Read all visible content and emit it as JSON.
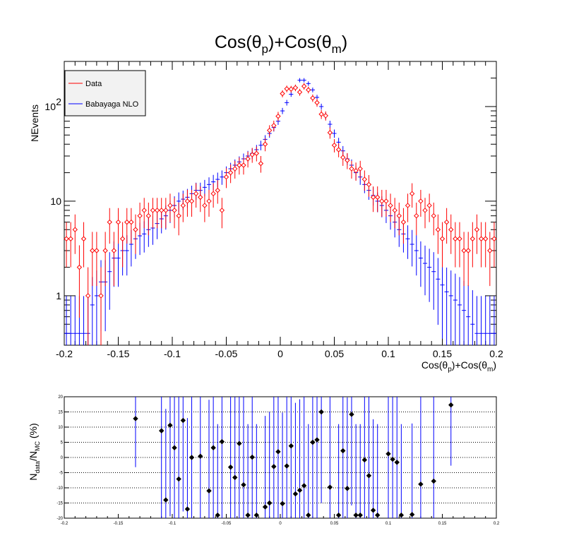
{
  "chart_data": [
    {
      "type": "scatter",
      "title": "Cos(θp)+Cos(θm)",
      "title_parts": [
        "Cos(θ",
        "p",
        ")+Cos(θ",
        "m",
        ")"
      ],
      "xlabel": "Cos(θp)+Cos(θm)",
      "xlabel_parts": [
        "Cos(θ",
        "p",
        ")+Cos(θ",
        "m",
        ")"
      ],
      "ylabel": "NEvents",
      "xlim": [
        -0.2,
        0.2
      ],
      "ylim": [
        0.3,
        300
      ],
      "y_log": true,
      "x_ticks": [
        "-0.2",
        "-0.15",
        "-0.1",
        "-0.05",
        "0",
        "0.05",
        "0.1",
        "0.15",
        "0.2"
      ],
      "y_ticks": [
        {
          "value": 1,
          "label": "1"
        },
        {
          "value": 10,
          "label": "10"
        },
        {
          "value": 100,
          "label": "10",
          "sup": "2"
        }
      ],
      "legend_position": "top-left",
      "legend": [
        {
          "label": "Data",
          "color": "#ff0000"
        },
        {
          "label": "Babayaga NLO",
          "color": "#0000ff"
        }
      ],
      "x": [
        -0.198,
        -0.194,
        -0.19,
        -0.186,
        -0.182,
        -0.178,
        -0.174,
        -0.17,
        -0.166,
        -0.162,
        -0.158,
        -0.154,
        -0.15,
        -0.146,
        -0.142,
        -0.138,
        -0.134,
        -0.13,
        -0.126,
        -0.122,
        -0.118,
        -0.114,
        -0.11,
        -0.106,
        -0.102,
        -0.098,
        -0.094,
        -0.09,
        -0.086,
        -0.082,
        -0.078,
        -0.074,
        -0.07,
        -0.066,
        -0.062,
        -0.058,
        -0.054,
        -0.05,
        -0.046,
        -0.042,
        -0.038,
        -0.034,
        -0.03,
        -0.026,
        -0.022,
        -0.018,
        -0.014,
        -0.01,
        -0.006,
        -0.002,
        0.002,
        0.006,
        0.01,
        0.014,
        0.018,
        0.022,
        0.026,
        0.03,
        0.034,
        0.038,
        0.042,
        0.046,
        0.05,
        0.054,
        0.058,
        0.062,
        0.066,
        0.07,
        0.074,
        0.078,
        0.082,
        0.086,
        0.09,
        0.094,
        0.098,
        0.102,
        0.106,
        0.11,
        0.114,
        0.118,
        0.122,
        0.126,
        0.13,
        0.134,
        0.138,
        0.142,
        0.146,
        0.15,
        0.154,
        0.158,
        0.162,
        0.166,
        0.17,
        0.174,
        0.178,
        0.182,
        0.186,
        0.19,
        0.194,
        0.198
      ],
      "series": [
        {
          "name": "Data",
          "color": "#ff0000",
          "marker": "open-diamond",
          "values": [
            4,
            4,
            5,
            2,
            4,
            1,
            3,
            3,
            1,
            3,
            6,
            3,
            6,
            4,
            6,
            6,
            5,
            7,
            8,
            7,
            8,
            8,
            8,
            8,
            9,
            8,
            7,
            9,
            10,
            10,
            12,
            11,
            9,
            10,
            12,
            13,
            8,
            18,
            20,
            22,
            24,
            24,
            28,
            31,
            32,
            25,
            40,
            56,
            63,
            79,
            137,
            154,
            153,
            158,
            142,
            164,
            150,
            123,
            110,
            83,
            80,
            53,
            39,
            35,
            29,
            27,
            22,
            21,
            22,
            17,
            15,
            11,
            11,
            10,
            10,
            9,
            8,
            7,
            6,
            9,
            12,
            7,
            10,
            8,
            9,
            7,
            5,
            4,
            6,
            5,
            4,
            4,
            3,
            3,
            4,
            5,
            4,
            4,
            3,
            4
          ]
        },
        {
          "name": "Babayaga NLO",
          "color": "#0000ff",
          "marker": "cross",
          "values": [
            0.4,
            0.4,
            0.4,
            0.4,
            0.4,
            0.4,
            0.8,
            1,
            1.4,
            1.4,
            1.8,
            2.5,
            2.5,
            3,
            3,
            3.5,
            4,
            4.3,
            4.5,
            5,
            5.2,
            5.8,
            6.5,
            7,
            8,
            9,
            10,
            10.5,
            11,
            12,
            13,
            13,
            14,
            15,
            16,
            17,
            18,
            20,
            22,
            24,
            26,
            28,
            30,
            32,
            35,
            39,
            45,
            52,
            60,
            70,
            90,
            110,
            135,
            160,
            190,
            190,
            175,
            150,
            125,
            100,
            80,
            65,
            52,
            42,
            34,
            28,
            24,
            20,
            18,
            15,
            13,
            11.5,
            10,
            9,
            8,
            7,
            6,
            5,
            4.5,
            4,
            3.5,
            3,
            2.5,
            2.2,
            2,
            1.8,
            1.5,
            1.3,
            1.1,
            1,
            0.9,
            0.8,
            0.7,
            0.6,
            0.5,
            0.4,
            0.4,
            0.4,
            0.4,
            0.4
          ]
        }
      ]
    },
    {
      "type": "scatter",
      "ylabel": "Ndata/NMC (%)",
      "ylabel_parts": [
        "N",
        "data",
        "/N",
        "MC",
        " (%)"
      ],
      "xlim": [
        -0.2,
        0.2
      ],
      "ylim": [
        -20,
        20
      ],
      "grid": "horizontal dotted",
      "x_ticks": [
        "-0.2",
        "-0.15",
        "-0.1",
        "-0.05",
        "0",
        "0.05",
        "0.1",
        "0.15",
        "0.2"
      ],
      "y_ticks": [
        "-20",
        "-15",
        "-10",
        "-5",
        "0",
        "5",
        "10",
        "15",
        "20"
      ],
      "series": [
        {
          "name": "",
          "color": "#000000",
          "marker": "filled-diamond",
          "error_color": "#0000ff",
          "x": [
            -0.134,
            -0.11,
            -0.106,
            -0.102,
            -0.098,
            -0.094,
            -0.09,
            -0.086,
            -0.082,
            -0.074,
            -0.066,
            -0.062,
            -0.058,
            -0.054,
            -0.046,
            -0.042,
            -0.038,
            -0.034,
            -0.03,
            -0.026,
            -0.022,
            -0.014,
            -0.01,
            -0.006,
            -0.002,
            0.002,
            0.006,
            0.01,
            0.014,
            0.018,
            0.022,
            0.026,
            0.03,
            0.034,
            0.038,
            0.046,
            0.054,
            0.058,
            0.062,
            0.066,
            0.07,
            0.074,
            0.078,
            0.082,
            0.086,
            0.09,
            0.1,
            0.104,
            0.108,
            0.112,
            0.122,
            0.13,
            0.142,
            0.158
          ],
          "values": [
            12.8,
            8.8,
            -14,
            10.6,
            3.2,
            -7.1,
            12.2,
            -17,
            0,
            0.4,
            -11,
            3.2,
            -19,
            5.2,
            -3.2,
            -6.6,
            4.6,
            -9,
            -19,
            0.1,
            -19,
            -16.3,
            -15,
            -3,
            1.9,
            -15.2,
            -2.8,
            3.8,
            -12,
            -10.8,
            -9.3,
            -19,
            5,
            5.8,
            15,
            -9.8,
            -19,
            2.2,
            -10.2,
            14.2,
            -19,
            -19,
            -0.8,
            -6,
            -17.4,
            -19,
            1.2,
            -0.6,
            -1.6,
            -19,
            -18.8,
            -8.8,
            -7.8,
            17.3
          ],
          "errors": [
            16,
            30,
            30,
            30,
            30,
            30,
            30,
            30,
            30,
            30,
            30,
            30,
            30,
            30,
            30,
            30,
            30,
            30,
            30,
            30,
            30,
            30,
            30,
            30,
            30,
            30,
            30,
            30,
            30,
            30,
            30,
            30,
            30,
            30,
            30,
            30,
            30,
            30,
            30,
            30,
            30,
            30,
            30,
            30,
            30,
            30,
            30,
            30,
            30,
            30,
            30,
            30,
            30,
            20
          ]
        }
      ]
    }
  ]
}
